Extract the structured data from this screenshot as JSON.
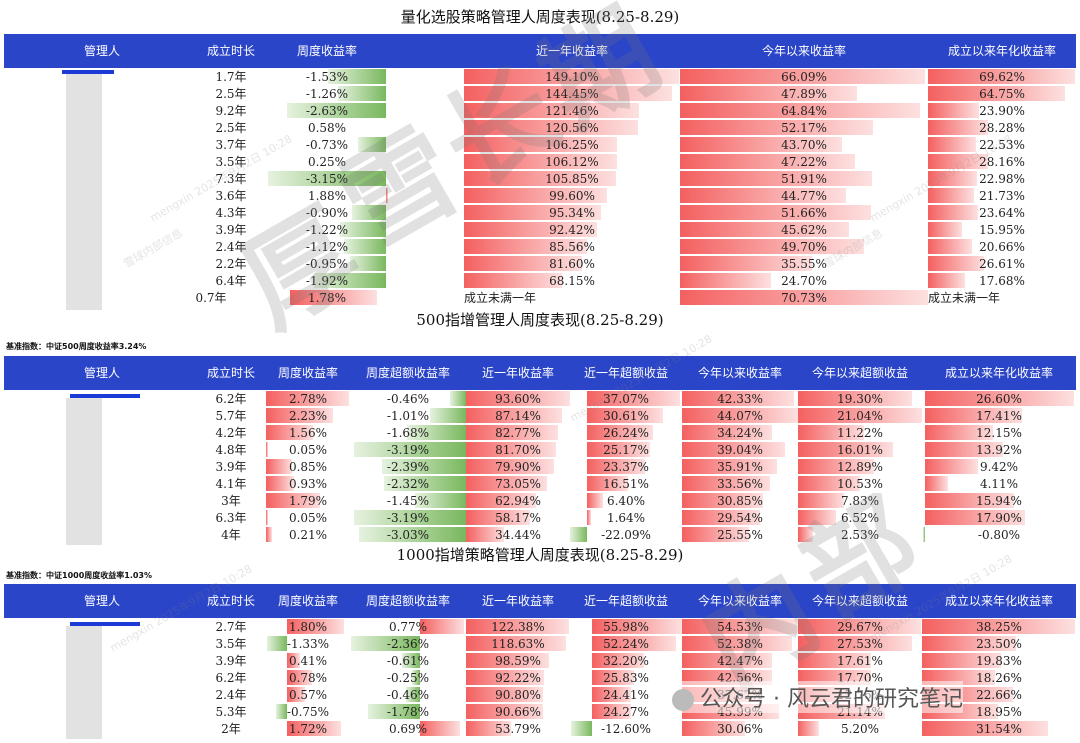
{
  "watermark": {
    "big_chars": [
      "厚",
      "雪",
      "长",
      "期",
      "内",
      "部"
    ],
    "small_text": "mengxin 2025年9月2日 10:28",
    "inner_text": "雪球内部信息"
  },
  "footer": {
    "text": "公众号 · 风云君的研究笔记"
  },
  "section1": {
    "title": "量化选股策略管理人周度表现(8.25-8.29)",
    "headers": [
      "管理人",
      "成立时长",
      "周度收益率",
      "近一年收益率",
      "今年以来收益率",
      "成立以来年化收益率"
    ],
    "rows": [
      {
        "age": "1.7年",
        "week": "-1.53%",
        "y1": "149.10%",
        "ytd": "66.09%",
        "ann": "69.62%"
      },
      {
        "age": "2.5年",
        "week": "-1.26%",
        "y1": "144.45%",
        "ytd": "47.89%",
        "ann": "64.75%"
      },
      {
        "age": "9.2年",
        "week": "-2.63%",
        "y1": "121.46%",
        "ytd": "64.84%",
        "ann": "23.90%"
      },
      {
        "age": "2.5年",
        "week": "0.58%",
        "y1": "120.56%",
        "ytd": "52.17%",
        "ann": "28.28%"
      },
      {
        "age": "3.7年",
        "week": "-0.73%",
        "y1": "106.25%",
        "ytd": "43.70%",
        "ann": "22.53%"
      },
      {
        "age": "3.5年",
        "week": "0.25%",
        "y1": "106.12%",
        "ytd": "47.22%",
        "ann": "28.16%"
      },
      {
        "age": "7.3年",
        "week": "-3.15%",
        "y1": "105.85%",
        "ytd": "51.91%",
        "ann": "22.98%"
      },
      {
        "age": "3.6年",
        "week": "1.88%",
        "y1": "99.60%",
        "ytd": "44.77%",
        "ann": "21.73%"
      },
      {
        "age": "4.3年",
        "week": "-0.90%",
        "y1": "95.34%",
        "ytd": "51.66%",
        "ann": "23.64%"
      },
      {
        "age": "3.9年",
        "week": "-1.22%",
        "y1": "92.42%",
        "ytd": "45.62%",
        "ann": "15.95%"
      },
      {
        "age": "2.4年",
        "week": "-1.12%",
        "y1": "85.56%",
        "ytd": "49.70%",
        "ann": "20.66%"
      },
      {
        "age": "2.2年",
        "week": "-0.95%",
        "y1": "81.60%",
        "ytd": "35.55%",
        "ann": "26.61%"
      },
      {
        "age": "6.4年",
        "week": "-1.92%",
        "y1": "68.15%",
        "ytd": "24.70%",
        "ann": "17.68%"
      }
    ],
    "last_row": {
      "age": "0.7年",
      "week": "1.78%",
      "y1": "成立未满一年",
      "ytd": "70.73%",
      "ann": "成立未满一年"
    }
  },
  "section2": {
    "title": "500指增管理人周度表现(8.25-8.29)",
    "bench": "基准指数：中证500周度收益率3.24%",
    "headers": [
      "管理人",
      "成立时长",
      "周度收益率",
      "周度超额收益率",
      "近一年收益率",
      "近一年超额收益",
      "今年以来收益率",
      "今年以来超额收益",
      "成立以来年化收益率"
    ],
    "rows": [
      {
        "age": "6.2年",
        "c": [
          "2.78%",
          "-0.46%",
          "93.60%",
          "37.07%",
          "42.33%",
          "19.30%",
          "26.60%"
        ]
      },
      {
        "age": "5.7年",
        "c": [
          "2.23%",
          "-1.01%",
          "87.14%",
          "30.61%",
          "44.07%",
          "21.04%",
          "17.41%"
        ]
      },
      {
        "age": "4.2年",
        "c": [
          "1.56%",
          "-1.68%",
          "82.77%",
          "26.24%",
          "34.24%",
          "11.22%",
          "12.15%"
        ]
      },
      {
        "age": "4.8年",
        "c": [
          "0.05%",
          "-3.19%",
          "81.70%",
          "25.17%",
          "39.04%",
          "16.01%",
          "13.92%"
        ]
      },
      {
        "age": "3.9年",
        "c": [
          "0.85%",
          "-2.39%",
          "79.90%",
          "23.37%",
          "35.91%",
          "12.89%",
          "9.42%"
        ]
      },
      {
        "age": "4.1年",
        "c": [
          "0.93%",
          "-2.32%",
          "73.05%",
          "16.51%",
          "33.56%",
          "10.53%",
          "4.11%"
        ]
      },
      {
        "age": "3年",
        "c": [
          "1.79%",
          "-1.45%",
          "62.94%",
          "6.40%",
          "30.85%",
          "7.83%",
          "15.94%"
        ]
      },
      {
        "age": "6.3年",
        "c": [
          "0.05%",
          "-3.19%",
          "58.17%",
          "1.64%",
          "29.54%",
          "6.52%",
          "17.90%"
        ]
      },
      {
        "age": "4年",
        "c": [
          "0.21%",
          "-3.03%",
          "34.44%",
          "-22.09%",
          "25.55%",
          "2.53%",
          "-0.80%"
        ]
      }
    ]
  },
  "section3": {
    "title": "1000指增策略管理人周度表现(8.25-8.29)",
    "bench": "基准指数：中证1000周度收益率1.03%",
    "headers": [
      "管理人",
      "成立时长",
      "周度收益率",
      "周度超额收益率",
      "近一年收益率",
      "近一年超额收益",
      "今年以来收益率",
      "今年以来超额收益",
      "成立以来年化收益率"
    ],
    "rows": [
      {
        "age": "2.7年",
        "c": [
          "1.80%",
          "0.77%",
          "122.38%",
          "55.98%",
          "54.53%",
          "29.67%",
          "38.25%"
        ]
      },
      {
        "age": "3.5年",
        "c": [
          "-1.33%",
          "-2.36%",
          "118.63%",
          "52.24%",
          "52.38%",
          "27.53%",
          "23.50%"
        ]
      },
      {
        "age": "3.9年",
        "c": [
          "0.41%",
          "-0.61%",
          "98.59%",
          "32.20%",
          "42.47%",
          "17.61%",
          "19.83%"
        ]
      },
      {
        "age": "6.2年",
        "c": [
          "0.78%",
          "-0.25%",
          "92.22%",
          "25.83%",
          "42.56%",
          "17.70%",
          "18.26%"
        ]
      },
      {
        "age": "2.4年",
        "c": [
          "0.57%",
          "-0.46%",
          "90.80%",
          "24.41%",
          "37.62%",
          "12.76%",
          "22.66%"
        ]
      },
      {
        "age": "5.3年",
        "c": [
          "-0.75%",
          "-1.78%",
          "90.66%",
          "24.27%",
          "45.99%",
          "21.14%",
          "18.95%"
        ]
      },
      {
        "age": "2年",
        "c": [
          "1.72%",
          "0.69%",
          "53.79%",
          "-12.60%",
          "30.06%",
          "5.20%",
          "31.54%"
        ]
      }
    ]
  }
}
